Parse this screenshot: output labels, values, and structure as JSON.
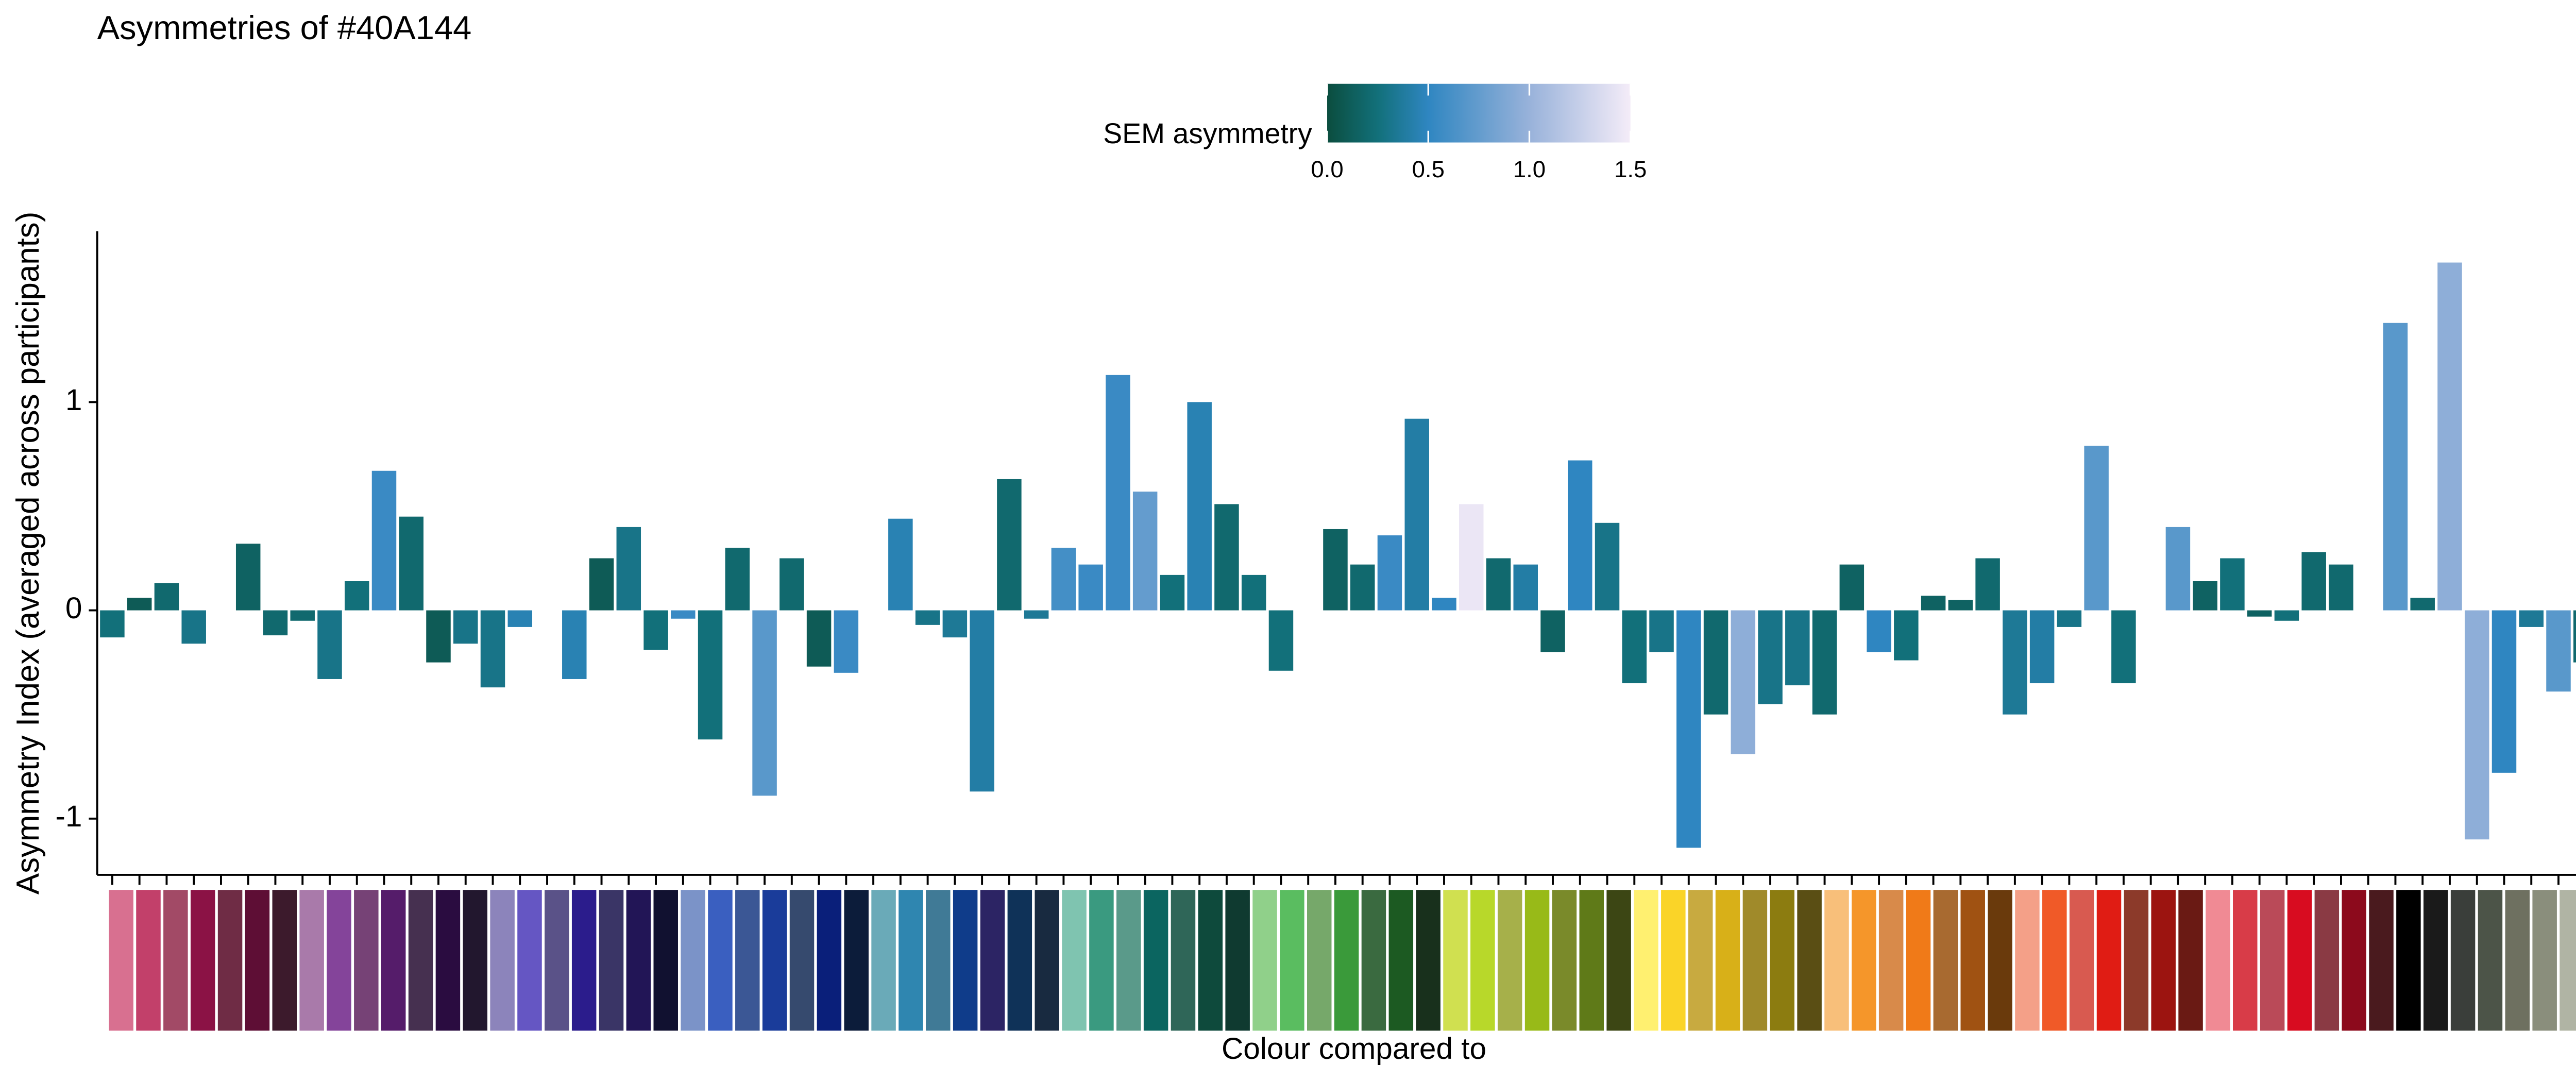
{
  "chart_data": {
    "type": "bar",
    "title": "Asymmetries of #40A144",
    "ylabel": "Asymmetry Index (averaged across participants)",
    "xlabel": "Colour compared to",
    "ylim": [
      -1.27,
      1.82
    ],
    "yticks": [
      -1,
      0,
      1
    ],
    "values": [
      -0.13,
      0.06,
      0.13,
      -0.16,
      0,
      0.32,
      -0.12,
      -0.05,
      -0.33,
      0.14,
      0.67,
      0.45,
      -0.25,
      -0.16,
      -0.37,
      -0.08,
      0,
      -0.33,
      0.25,
      0.4,
      -0.19,
      -0.04,
      -0.62,
      0.3,
      -0.89,
      0.25,
      -0.27,
      -0.3,
      0,
      0.44,
      -0.07,
      -0.13,
      -0.87,
      0.63,
      -0.04,
      0.3,
      0.22,
      1.13,
      0.57,
      0.17,
      1.0,
      0.51,
      0.17,
      -0.29,
      0,
      0.39,
      0.22,
      0.36,
      0.92,
      0.06,
      0.51,
      0.25,
      0.22,
      -0.2,
      0.72,
      0.42,
      -0.35,
      -0.2,
      -1.14,
      -0.5,
      -0.69,
      -0.45,
      -0.36,
      -0.5,
      0.22,
      -0.2,
      -0.24,
      0.07,
      0.05,
      0.25,
      -0.5,
      -0.35,
      -0.08,
      0.79,
      -0.35,
      0,
      0.4,
      0.14,
      0.25,
      -0.03,
      -0.05,
      0.28,
      0.22,
      0,
      1.38,
      0.06,
      1.67,
      -1.1,
      -0.78,
      -0.08,
      -0.39,
      -0.25
    ],
    "sem": [
      0.25,
      0.1,
      0.2,
      0.3,
      0,
      0.15,
      0.2,
      0.2,
      0.3,
      0.25,
      0.55,
      0.2,
      0.1,
      0.3,
      0.3,
      0.45,
      0,
      0.45,
      0.1,
      0.3,
      0.25,
      0.55,
      0.25,
      0.2,
      0.7,
      0.2,
      0.1,
      0.55,
      0,
      0.45,
      0.3,
      0.35,
      0.4,
      0.2,
      0.35,
      0.6,
      0.55,
      0.55,
      0.75,
      0.25,
      0.45,
      0.2,
      0.25,
      0.25,
      0,
      0.15,
      0.2,
      0.55,
      0.4,
      0.5,
      1.45,
      0.2,
      0.4,
      0.15,
      0.5,
      0.3,
      0.25,
      0.3,
      0.5,
      0.2,
      0.95,
      0.3,
      0.3,
      0.2,
      0.15,
      0.5,
      0.25,
      0.15,
      0.15,
      0.2,
      0.35,
      0.4,
      0.3,
      0.7,
      0.25,
      0,
      0.7,
      0.15,
      0.25,
      0.15,
      0.25,
      0.2,
      0.2,
      0,
      0.7,
      0.2,
      0.95,
      0.95,
      0.5,
      0.35,
      0.7,
      0.2
    ],
    "colorbar": {
      "label": "SEM asymmetry",
      "lim": [
        0,
        1.5
      ],
      "ticks": [
        {
          "value": 0,
          "label": "0.0"
        },
        {
          "value": 0.5,
          "label": "0.5"
        },
        {
          "value": 1,
          "label": "1.0"
        },
        {
          "value": 1.5,
          "label": "1.5"
        }
      ],
      "stops": [
        {
          "value": 0,
          "color": "#0b4d3e"
        },
        {
          "value": 0.25,
          "color": "#12707a"
        },
        {
          "value": 0.5,
          "color": "#2f86c1"
        },
        {
          "value": 1,
          "color": "#98b2da"
        },
        {
          "value": 1.5,
          "color": "#f4ecf8"
        }
      ]
    },
    "swatch_colors": [
      "#d87090",
      "#c2406a",
      "#a24a66",
      "#8b1245",
      "#6f2c45",
      "#5e0e35",
      "#3c1a2c",
      "#a97aaa",
      "#84449a",
      "#764276",
      "#551c6a",
      "#463050",
      "#2a0c40",
      "#22172e",
      "#8c84bb",
      "#6556c3",
      "#5a5288",
      "#2b1c8c",
      "#3a3566",
      "#221556",
      "#111130",
      "#7b93c8",
      "#3a5fc0",
      "#3b5795",
      "#1a3c9a",
      "#364a6e",
      "#0a1f7a",
      "#0c1c3a",
      "#6aaab8",
      "#2f86b0",
      "#407a96",
      "#0f3c8a",
      "#2c2464",
      "#0f3258",
      "#182a40",
      "#7fc4b0",
      "#3a9a80",
      "#5a9a8a",
      "#0b6560",
      "#2f6658",
      "#0e4a3c",
      "#0f3a30",
      "#90d08a",
      "#5abd60",
      "#76a86a",
      "#3a9a3a",
      "#3a6a40",
      "#1c5a22",
      "#18301c",
      "#d0e050",
      "#b8d82a",
      "#a6b04a",
      "#98ba18",
      "#7a8a2a",
      "#5f7a18",
      "#3c4614",
      "#fff070",
      "#fad428",
      "#c8aa40",
      "#d8b018",
      "#a08a2a",
      "#8c7c10",
      "#5a4e14",
      "#f8bf7a",
      "#f5962a",
      "#d88a4a",
      "#f07a18",
      "#a86a30",
      "#a05212",
      "#6a3a0c",
      "#f4a088",
      "#f05a28",
      "#d85a50",
      "#e01c14",
      "#8c3a2a",
      "#9c1410",
      "#6a1a14",
      "#f08a94",
      "#d83c48",
      "#ba4a58",
      "#d80c20",
      "#8a3a44",
      "#8c0a1c",
      "#4a1a1e",
      "#000000",
      "#1a1a1a",
      "#3a3e3a",
      "#4c5448",
      "#6e7060",
      "#8a8e7c",
      "#b0b4a4",
      "#d0d4c4"
    ]
  }
}
